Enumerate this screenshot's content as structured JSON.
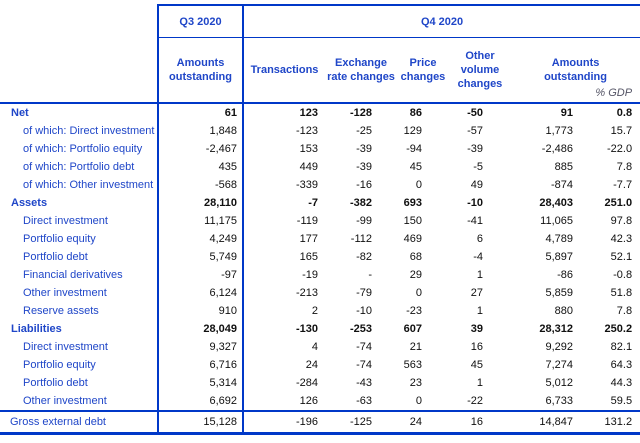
{
  "colors": {
    "accent_blue": "#0038c8",
    "label_text_blue": "#1f46c8",
    "number_text": "#101010",
    "gdp_label_gray": "#555566"
  },
  "table": {
    "period_headers": {
      "q3": "Q3 2020",
      "q4": "Q4 2020"
    },
    "subheaders": {
      "q3_amounts": "Amounts outstanding",
      "transactions": "Transactions",
      "exchange_rate": "Exchange rate changes",
      "price": "Price changes",
      "other_volume": "Other volume changes",
      "q4_amounts": "Amounts outstanding",
      "gdp": "% GDP"
    },
    "columns": [
      "Amounts outstanding (Q3 2020)",
      "Transactions",
      "Exchange rate changes",
      "Price changes",
      "Other volume changes",
      "Amounts outstanding (Q4 2020)",
      "% GDP"
    ],
    "rows": [
      {
        "label": "Net",
        "bold": true,
        "indent": "l1",
        "values": [
          "61",
          "123",
          "-128",
          "86",
          "-50",
          "91",
          "0.8"
        ]
      },
      {
        "label": "of which: Direct investment",
        "bold": false,
        "indent": "l2",
        "values": [
          "1,848",
          "-123",
          "-25",
          "129",
          "-57",
          "1,773",
          "15.7"
        ]
      },
      {
        "label": "of which: Portfolio equity",
        "bold": false,
        "indent": "l2",
        "values": [
          "-2,467",
          "153",
          "-39",
          "-94",
          "-39",
          "-2,486",
          "-22.0"
        ]
      },
      {
        "label": "of which: Portfolio debt",
        "bold": false,
        "indent": "l2",
        "values": [
          "435",
          "449",
          "-39",
          "45",
          "-5",
          "885",
          "7.8"
        ]
      },
      {
        "label": "of which: Other investment",
        "bold": false,
        "indent": "l2",
        "values": [
          "-568",
          "-339",
          "-16",
          "0",
          "49",
          "-874",
          "-7.7"
        ]
      },
      {
        "label": "Assets",
        "bold": true,
        "indent": "l1",
        "values": [
          "28,110",
          "-7",
          "-382",
          "693",
          "-10",
          "28,403",
          "251.0"
        ]
      },
      {
        "label": "Direct investment",
        "bold": false,
        "indent": "l2",
        "values": [
          "11,175",
          "-119",
          "-99",
          "150",
          "-41",
          "11,065",
          "97.8"
        ]
      },
      {
        "label": "Portfolio equity",
        "bold": false,
        "indent": "l2",
        "values": [
          "4,249",
          "177",
          "-112",
          "469",
          "6",
          "4,789",
          "42.3"
        ]
      },
      {
        "label": "Portfolio debt",
        "bold": false,
        "indent": "l2",
        "values": [
          "5,749",
          "165",
          "-82",
          "68",
          "-4",
          "5,897",
          "52.1"
        ]
      },
      {
        "label": "Financial derivatives",
        "bold": false,
        "indent": "l2",
        "values": [
          "-97",
          "-19",
          "-",
          "29",
          "1",
          "-86",
          "-0.8"
        ]
      },
      {
        "label": "Other investment",
        "bold": false,
        "indent": "l2",
        "values": [
          "6,124",
          "-213",
          "-79",
          "0",
          "27",
          "5,859",
          "51.8"
        ]
      },
      {
        "label": "Reserve assets",
        "bold": false,
        "indent": "l2",
        "values": [
          "910",
          "2",
          "-10",
          "-23",
          "1",
          "880",
          "7.8"
        ]
      },
      {
        "label": "Liabilities",
        "bold": true,
        "indent": "l1",
        "values": [
          "28,049",
          "-130",
          "-253",
          "607",
          "39",
          "28,312",
          "250.2"
        ]
      },
      {
        "label": "Direct investment",
        "bold": false,
        "indent": "l2",
        "values": [
          "9,327",
          "4",
          "-74",
          "21",
          "16",
          "9,292",
          "82.1"
        ]
      },
      {
        "label": "Portfolio equity",
        "bold": false,
        "indent": "l2",
        "values": [
          "6,716",
          "24",
          "-74",
          "563",
          "45",
          "7,274",
          "64.3"
        ]
      },
      {
        "label": "Portfolio debt",
        "bold": false,
        "indent": "l2",
        "values": [
          "5,314",
          "-284",
          "-43",
          "23",
          "1",
          "5,012",
          "44.3"
        ]
      },
      {
        "label": "Other investment",
        "bold": false,
        "indent": "l2",
        "values": [
          "6,692",
          "126",
          "-63",
          "0",
          "-22",
          "6,733",
          "59.5"
        ]
      },
      {
        "label": "Gross external debt",
        "bold": false,
        "indent": "l0",
        "total_rule": true,
        "values": [
          "15,128",
          "-196",
          "-125",
          "24",
          "16",
          "14,847",
          "131.2"
        ]
      }
    ]
  }
}
